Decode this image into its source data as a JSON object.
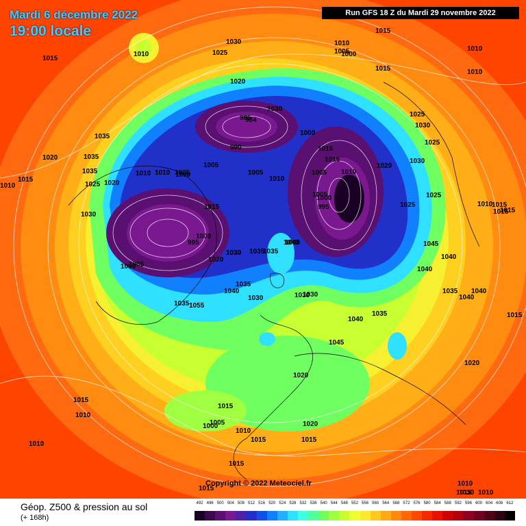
{
  "header": {
    "date": "Mardi 6 décembre 2022",
    "time": "19:00 locale",
    "run": "Run GFS 18 Z du Mardi 29 novembre 2022"
  },
  "copyright": "Copyright © 2022 Meteociel.fr",
  "legend": {
    "title": "Géop. Z500 & pression au sol",
    "subtitle": "(+ 168h)",
    "scale_labels": [
      "492",
      "496",
      "500",
      "504",
      "508",
      "512",
      "516",
      "520",
      "524",
      "528",
      "532",
      "536",
      "540",
      "544",
      "548",
      "552",
      "556",
      "560",
      "564",
      "568",
      "572",
      "576",
      "580",
      "584",
      "588",
      "592",
      "596",
      "600",
      "604",
      "608",
      "612"
    ],
    "scale_colors": [
      "#1a0024",
      "#3a0a4a",
      "#5a1070",
      "#7a1890",
      "#5020a8",
      "#2030c8",
      "#1050e8",
      "#1080ff",
      "#20b0ff",
      "#30e0ff",
      "#40ffe0",
      "#50ffa0",
      "#70ff60",
      "#a0ff40",
      "#c8ff30",
      "#f0ff30",
      "#ffe830",
      "#ffc820",
      "#ffa818",
      "#ff8810",
      "#ff6808",
      "#ff4800",
      "#f82800",
      "#e81000",
      "#d00000",
      "#b00010",
      "#900020",
      "#700020",
      "#500018",
      "#300010",
      "#000000"
    ]
  },
  "isobar_labels": [
    {
      "text": "1015"
    },
    {
      "text": "1010"
    },
    {
      "text": "1030"
    },
    {
      "text": "1025"
    },
    {
      "text": "1015"
    },
    {
      "text": "1010"
    },
    {
      "text": "1005"
    },
    {
      "text": "1000"
    },
    {
      "text": "1015"
    },
    {
      "text": "1010"
    },
    {
      "text": "1020"
    },
    {
      "text": "1035"
    },
    {
      "text": "1020"
    },
    {
      "text": "1035"
    },
    {
      "text": "1035"
    },
    {
      "text": "1025"
    },
    {
      "text": "1020"
    },
    {
      "text": "1015"
    },
    {
      "text": "1010"
    },
    {
      "text": "1010"
    },
    {
      "text": "1030"
    },
    {
      "text": "1010"
    },
    {
      "text": "1005"
    },
    {
      "text": "1000"
    },
    {
      "text": "1015"
    },
    {
      "text": "1000"
    },
    {
      "text": "995"
    },
    {
      "text": "1020"
    },
    {
      "text": "1030"
    },
    {
      "text": "1035"
    },
    {
      "text": "1000"
    },
    {
      "text": "1005"
    },
    {
      "text": "1035"
    },
    {
      "text": "1055"
    },
    {
      "text": "1040"
    },
    {
      "text": "1035"
    },
    {
      "text": "1030"
    },
    {
      "text": "990"
    },
    {
      "text": "985"
    },
    {
      "text": "1005"
    },
    {
      "text": "1010"
    },
    {
      "text": "1040"
    },
    {
      "text": "1000"
    },
    {
      "text": "1015"
    },
    {
      "text": "1015"
    },
    {
      "text": "1005"
    },
    {
      "text": "1005"
    },
    {
      "text": "1000"
    },
    {
      "text": "995"
    },
    {
      "text": "1020"
    },
    {
      "text": "1030"
    },
    {
      "text": "1025"
    },
    {
      "text": "1030"
    },
    {
      "text": "1025"
    },
    {
      "text": "1025"
    },
    {
      "text": "1025"
    },
    {
      "text": "1045"
    },
    {
      "text": "1040"
    },
    {
      "text": "1040"
    },
    {
      "text": "1010"
    },
    {
      "text": "1015"
    },
    {
      "text": "1035"
    },
    {
      "text": "1040"
    },
    {
      "text": "1030"
    },
    {
      "text": "1035"
    },
    {
      "text": "1040"
    },
    {
      "text": "1045"
    },
    {
      "text": "1015"
    },
    {
      "text": "1015"
    },
    {
      "text": "1020"
    },
    {
      "text": "1020"
    },
    {
      "text": "1015"
    },
    {
      "text": "1010"
    },
    {
      "text": "1010"
    },
    {
      "text": "1015"
    },
    {
      "text": "1005"
    },
    {
      "text": "1000"
    },
    {
      "text": "1015"
    },
    {
      "text": "1010"
    },
    {
      "text": "1015"
    },
    {
      "text": "1020"
    },
    {
      "text": "1015"
    },
    {
      "text": "1015"
    },
    {
      "text": "1010"
    },
    {
      "text": "1010"
    },
    {
      "text": "1015"
    },
    {
      "text": "1010"
    },
    {
      "text": "1015"
    },
    {
      "text": "1030"
    },
    {
      "text": "1010"
    },
    {
      "text": "1040"
    },
    {
      "text": "1040"
    },
    {
      "text": "1030"
    },
    {
      "text": "984"
    },
    {
      "text": "1005"
    },
    {
      "text": "1030"
    },
    {
      "text": "1035"
    },
    {
      "text": "1030"
    }
  ]
}
